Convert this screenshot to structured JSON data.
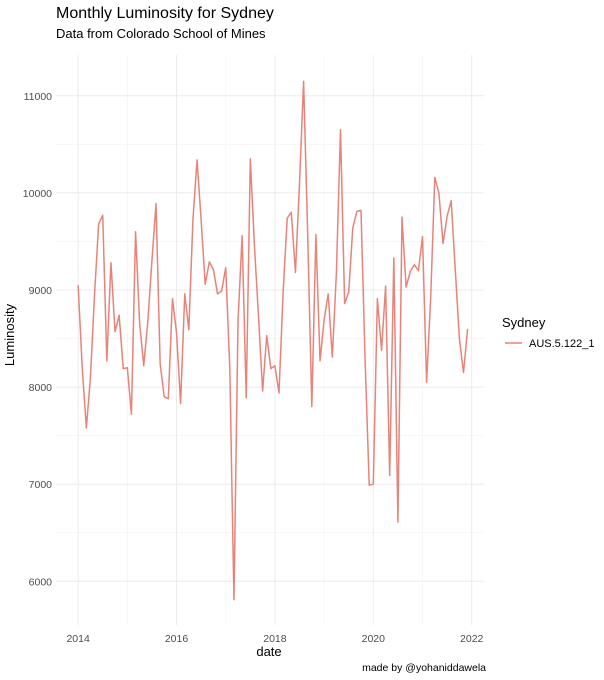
{
  "chart_data": {
    "type": "line",
    "title": "Monthly Luminosity for Sydney",
    "subtitle": "Data from Colorado School of Mines",
    "xlabel": "date",
    "ylabel": "Luminosity",
    "caption": "made by @yohaniddawela",
    "legend": {
      "title": "Sydney",
      "placement": "right",
      "entries": [
        "AUS.5.122_1"
      ]
    },
    "xlim": [
      2013.55,
      2022.25
    ],
    "ylim": [
      5550,
      11420
    ],
    "x_ticks": [
      2014,
      2016,
      2018,
      2020,
      2022
    ],
    "x_tick_labels": [
      "2014",
      "2016",
      "2018",
      "2020",
      "2022"
    ],
    "y_ticks": [
      6000,
      7000,
      8000,
      9000,
      10000,
      11000
    ],
    "y_tick_labels": [
      "6000",
      "7000",
      "8000",
      "9000",
      "10000",
      "11000"
    ],
    "grid": true,
    "series": [
      {
        "name": "AUS.5.122_1",
        "color": "#e8837a",
        "x": [
          2014.0,
          2014.083,
          2014.167,
          2014.25,
          2014.333,
          2014.417,
          2014.5,
          2014.583,
          2014.667,
          2014.75,
          2014.833,
          2014.917,
          2015.0,
          2015.083,
          2015.167,
          2015.25,
          2015.333,
          2015.417,
          2015.5,
          2015.583,
          2015.667,
          2015.75,
          2015.833,
          2015.917,
          2016.0,
          2016.083,
          2016.167,
          2016.25,
          2016.333,
          2016.417,
          2016.5,
          2016.583,
          2016.667,
          2016.75,
          2016.833,
          2016.917,
          2017.0,
          2017.083,
          2017.167,
          2017.25,
          2017.333,
          2017.417,
          2017.5,
          2017.583,
          2017.667,
          2017.75,
          2017.833,
          2017.917,
          2018.0,
          2018.083,
          2018.167,
          2018.25,
          2018.333,
          2018.417,
          2018.5,
          2018.583,
          2018.667,
          2018.75,
          2018.833,
          2018.917,
          2019.0,
          2019.083,
          2019.167,
          2019.25,
          2019.333,
          2019.417,
          2019.5,
          2019.583,
          2019.667,
          2019.75,
          2019.833,
          2019.917,
          2020.0,
          2020.083,
          2020.167,
          2020.25,
          2020.333,
          2020.417,
          2020.5,
          2020.583,
          2020.667,
          2020.75,
          2020.833,
          2020.917,
          2021.0,
          2021.083,
          2021.167,
          2021.25,
          2021.333,
          2021.417,
          2021.5,
          2021.583,
          2021.667,
          2021.75,
          2021.833,
          2021.917
        ],
        "y": [
          9050,
          8200,
          7580,
          8100,
          8950,
          9680,
          9770,
          8270,
          9280,
          8570,
          8740,
          8190,
          8200,
          7720,
          9600,
          8660,
          8220,
          8680,
          9300,
          9890,
          8240,
          7900,
          7880,
          8910,
          8560,
          7830,
          8960,
          8590,
          9720,
          10340,
          9720,
          9060,
          9290,
          9210,
          8960,
          8990,
          9230,
          8190,
          5810,
          8680,
          9560,
          7890,
          10350,
          9460,
          8720,
          7960,
          8530,
          8190,
          8220,
          7940,
          8980,
          9740,
          9800,
          9180,
          10100,
          11150,
          9560,
          7800,
          9570,
          8270,
          8690,
          8960,
          8310,
          9180,
          10650,
          8860,
          8980,
          9640,
          9810,
          9820,
          8280,
          6990,
          7000,
          8910,
          8380,
          9040,
          7090,
          9330,
          6610,
          9750,
          9030,
          9190,
          9260,
          9200,
          9550,
          8050,
          8930,
          10160,
          10000,
          9480,
          9760,
          9920,
          9200,
          8500,
          8150,
          8600
        ]
      }
    ]
  }
}
